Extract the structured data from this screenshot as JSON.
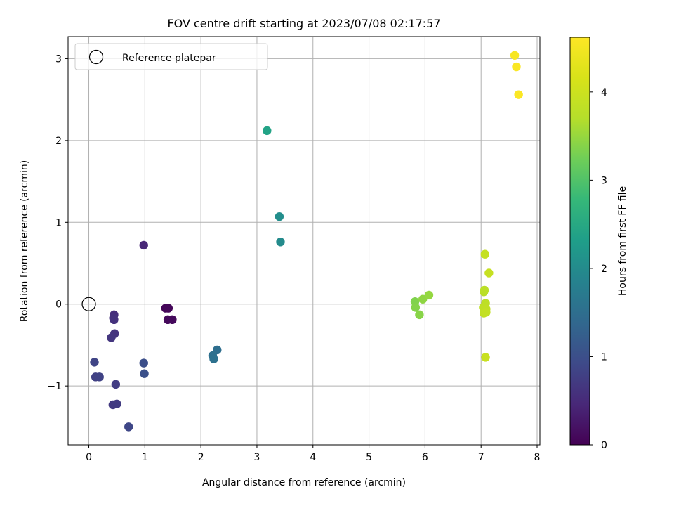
{
  "chart_data": {
    "type": "scatter",
    "title": "FOV centre drift starting at 2023/07/08 02:17:57",
    "xlabel": "Angular distance from reference (arcmin)",
    "ylabel": "Rotation from reference (arcmin)",
    "colorbar_label": "Hours from first FF file",
    "xlim": [
      -0.37,
      8.05
    ],
    "ylim": [
      -1.72,
      3.27
    ],
    "clim": [
      0,
      4.62
    ],
    "colormap": "viridis",
    "grid": true,
    "legend": {
      "placement": "upper-left",
      "entries": [
        "Reference platepar"
      ]
    },
    "x_ticks": [
      "0",
      "1",
      "2",
      "3",
      "4",
      "5",
      "6",
      "7",
      "8"
    ],
    "x_tick_values": [
      0,
      1,
      2,
      3,
      4,
      5,
      6,
      7,
      8
    ],
    "y_ticks": [
      "−1",
      "0",
      "1",
      "2",
      "3"
    ],
    "y_tick_values": [
      -1,
      0,
      1,
      2,
      3
    ],
    "colorbar_ticks": [
      "0",
      "1",
      "2",
      "3",
      "4"
    ],
    "colorbar_tick_values": [
      0,
      1,
      2,
      3,
      4
    ],
    "reference_point": {
      "x": 0,
      "y": 0,
      "marker": "open-circle",
      "label": "Reference platepar"
    },
    "points": [
      {
        "x": 1.37,
        "y": -0.05,
        "c": 0.05
      },
      {
        "x": 1.42,
        "y": -0.05,
        "c": 0.07
      },
      {
        "x": 1.41,
        "y": -0.19,
        "c": 0.09
      },
      {
        "x": 1.49,
        "y": -0.19,
        "c": 0.1
      },
      {
        "x": 0.98,
        "y": 0.72,
        "c": 0.45
      },
      {
        "x": 0.45,
        "y": -0.13,
        "c": 0.55
      },
      {
        "x": 0.44,
        "y": -0.17,
        "c": 0.58
      },
      {
        "x": 0.45,
        "y": -0.19,
        "c": 0.6
      },
      {
        "x": 0.46,
        "y": -0.36,
        "c": 0.62
      },
      {
        "x": 0.4,
        "y": -0.41,
        "c": 0.65
      },
      {
        "x": 0.43,
        "y": -1.23,
        "c": 0.7
      },
      {
        "x": 0.5,
        "y": -1.22,
        "c": 0.72
      },
      {
        "x": 0.48,
        "y": -0.98,
        "c": 0.75
      },
      {
        "x": 0.12,
        "y": -0.89,
        "c": 0.8
      },
      {
        "x": 0.19,
        "y": -0.89,
        "c": 0.82
      },
      {
        "x": 0.1,
        "y": -0.71,
        "c": 0.85
      },
      {
        "x": 0.71,
        "y": -1.5,
        "c": 0.88
      },
      {
        "x": 0.98,
        "y": -0.72,
        "c": 1.0
      },
      {
        "x": 0.99,
        "y": -0.85,
        "c": 1.02
      },
      {
        "x": 2.29,
        "y": -0.56,
        "c": 1.5
      },
      {
        "x": 2.21,
        "y": -0.63,
        "c": 1.52
      },
      {
        "x": 2.23,
        "y": -0.67,
        "c": 1.54
      },
      {
        "x": 3.42,
        "y": 0.76,
        "c": 2.0
      },
      {
        "x": 3.4,
        "y": 1.07,
        "c": 2.05
      },
      {
        "x": 3.18,
        "y": 2.12,
        "c": 2.4
      },
      {
        "x": 5.82,
        "y": 0.03,
        "c": 3.35
      },
      {
        "x": 5.83,
        "y": -0.04,
        "c": 3.38
      },
      {
        "x": 5.9,
        "y": -0.13,
        "c": 3.4
      },
      {
        "x": 5.96,
        "y": 0.06,
        "c": 3.45
      },
      {
        "x": 6.07,
        "y": 0.11,
        "c": 3.48
      },
      {
        "x": 7.05,
        "y": 0.15,
        "c": 3.75
      },
      {
        "x": 7.06,
        "y": 0.17,
        "c": 3.78
      },
      {
        "x": 7.08,
        "y": 0.01,
        "c": 3.8
      },
      {
        "x": 7.04,
        "y": -0.04,
        "c": 3.82
      },
      {
        "x": 7.09,
        "y": -0.06,
        "c": 3.84
      },
      {
        "x": 7.05,
        "y": -0.11,
        "c": 3.86
      },
      {
        "x": 7.09,
        "y": -0.1,
        "c": 3.88
      },
      {
        "x": 7.07,
        "y": 0.61,
        "c": 3.9
      },
      {
        "x": 7.14,
        "y": 0.38,
        "c": 3.92
      },
      {
        "x": 7.08,
        "y": -0.65,
        "c": 3.95
      },
      {
        "x": 7.6,
        "y": 3.04,
        "c": 4.55
      },
      {
        "x": 7.63,
        "y": 2.9,
        "c": 4.58
      },
      {
        "x": 7.67,
        "y": 2.56,
        "c": 4.6
      }
    ]
  }
}
